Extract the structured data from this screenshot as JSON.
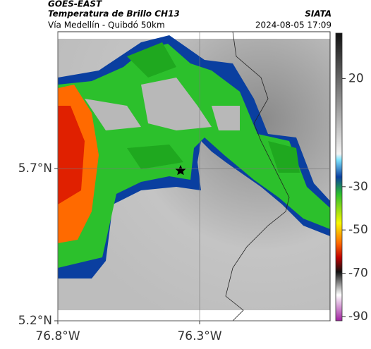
{
  "header": {
    "agency": "GOES-EAST",
    "product": "Temperatura de Brillo CH13",
    "route": "Vía Medellín - Quibdó 50km",
    "source": "SIATA",
    "timestamp": "2024-08-05 17:09"
  },
  "map": {
    "xlim": [
      -76.8,
      -75.84
    ],
    "ylim": [
      5.2,
      6.15
    ],
    "xticks": [
      {
        "value": -76.8,
        "label": "76.8°W"
      },
      {
        "value": -76.3,
        "label": "76.3°W"
      }
    ],
    "yticks": [
      {
        "value": 5.7,
        "label": "5.7°N"
      },
      {
        "value": 5.2,
        "label": "5.2°N"
      }
    ]
  },
  "colorbar": {
    "lim": [
      -92,
      41
    ],
    "ticks": [
      20,
      -30,
      -50,
      -70,
      -90
    ]
  }
}
